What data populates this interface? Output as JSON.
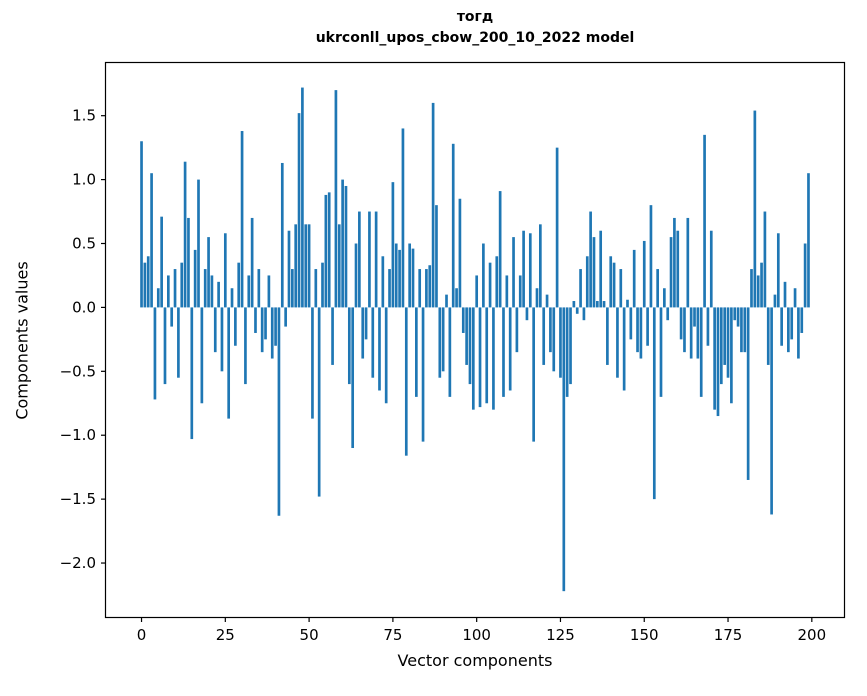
{
  "chart_data": {
    "type": "bar",
    "title": "тогд",
    "subtitle": "ukrconll_upos_cbow_200_10_2022 model",
    "xlabel": "Vector components",
    "ylabel": "Components values",
    "bar_color": "#1f77b4",
    "background_color": "#ffffff",
    "axis_color": "#000000",
    "grid": false,
    "legend": false,
    "xlim": [
      -10.9,
      209.9
    ],
    "ylim": [
      -2.43,
      1.92
    ],
    "x_ticks": [
      0,
      25,
      50,
      75,
      100,
      125,
      150,
      175,
      200
    ],
    "y_ticks": [
      -2.0,
      -1.5,
      -1.0,
      -0.5,
      0.0,
      0.5,
      1.0,
      1.5
    ],
    "y_tick_labels": [
      "−2.0",
      "−1.5",
      "−1.0",
      "−0.5",
      "0.0",
      "0.5",
      "1.0",
      "1.5"
    ],
    "x_start": 0,
    "values": [
      1.3,
      0.35,
      0.4,
      1.05,
      -0.72,
      0.15,
      0.71,
      -0.6,
      0.25,
      -0.15,
      0.3,
      -0.55,
      0.35,
      1.14,
      0.7,
      -1.03,
      0.45,
      1.0,
      -0.75,
      0.3,
      0.55,
      0.25,
      -0.35,
      0.2,
      -0.5,
      0.58,
      -0.87,
      0.15,
      -0.3,
      0.35,
      1.38,
      -0.6,
      0.25,
      0.7,
      -0.2,
      0.3,
      -0.35,
      -0.25,
      0.25,
      -0.4,
      -0.3,
      -1.63,
      1.13,
      -0.15,
      0.6,
      0.3,
      0.65,
      1.52,
      1.72,
      0.65,
      0.65,
      -0.87,
      0.3,
      -1.48,
      0.35,
      0.88,
      0.9,
      -0.45,
      1.7,
      0.65,
      1.0,
      0.95,
      -0.6,
      -1.1,
      0.5,
      0.75,
      -0.4,
      -0.25,
      0.75,
      -0.55,
      0.75,
      -0.65,
      0.4,
      -0.75,
      0.3,
      0.98,
      0.5,
      0.45,
      1.4,
      -1.16,
      0.5,
      0.46,
      -0.7,
      0.3,
      -1.05,
      0.3,
      0.33,
      1.6,
      0.8,
      -0.55,
      -0.5,
      0.1,
      -0.7,
      1.28,
      0.15,
      0.85,
      -0.2,
      -0.45,
      -0.6,
      -0.8,
      0.25,
      -0.78,
      0.5,
      -0.75,
      0.35,
      -0.8,
      0.4,
      0.91,
      -0.7,
      0.25,
      -0.65,
      0.55,
      -0.35,
      0.25,
      0.6,
      -0.1,
      0.58,
      -1.05,
      0.15,
      0.65,
      -0.45,
      0.1,
      -0.35,
      -0.5,
      1.25,
      -0.55,
      -2.22,
      -0.7,
      -0.6,
      0.05,
      -0.05,
      0.3,
      -0.1,
      0.4,
      0.75,
      0.55,
      0.05,
      0.6,
      0.05,
      -0.45,
      0.4,
      0.35,
      -0.55,
      0.3,
      -0.65,
      0.06,
      -0.25,
      0.45,
      -0.35,
      -0.4,
      0.52,
      -0.3,
      0.8,
      -1.5,
      0.3,
      -0.7,
      0.15,
      -0.1,
      0.55,
      0.7,
      0.6,
      -0.25,
      -0.35,
      0.7,
      -0.4,
      -0.15,
      -0.4,
      -0.7,
      1.35,
      -0.3,
      0.6,
      -0.8,
      -0.85,
      -0.6,
      -0.45,
      -0.55,
      -0.75,
      -0.1,
      -0.15,
      -0.35,
      -0.35,
      -1.35,
      0.3,
      1.54,
      0.25,
      0.35,
      0.75,
      -0.45,
      -1.62,
      0.1,
      0.58,
      -0.3,
      0.2,
      -0.35,
      -0.25,
      0.15,
      -0.4,
      -0.2,
      0.5,
      1.05
    ]
  }
}
